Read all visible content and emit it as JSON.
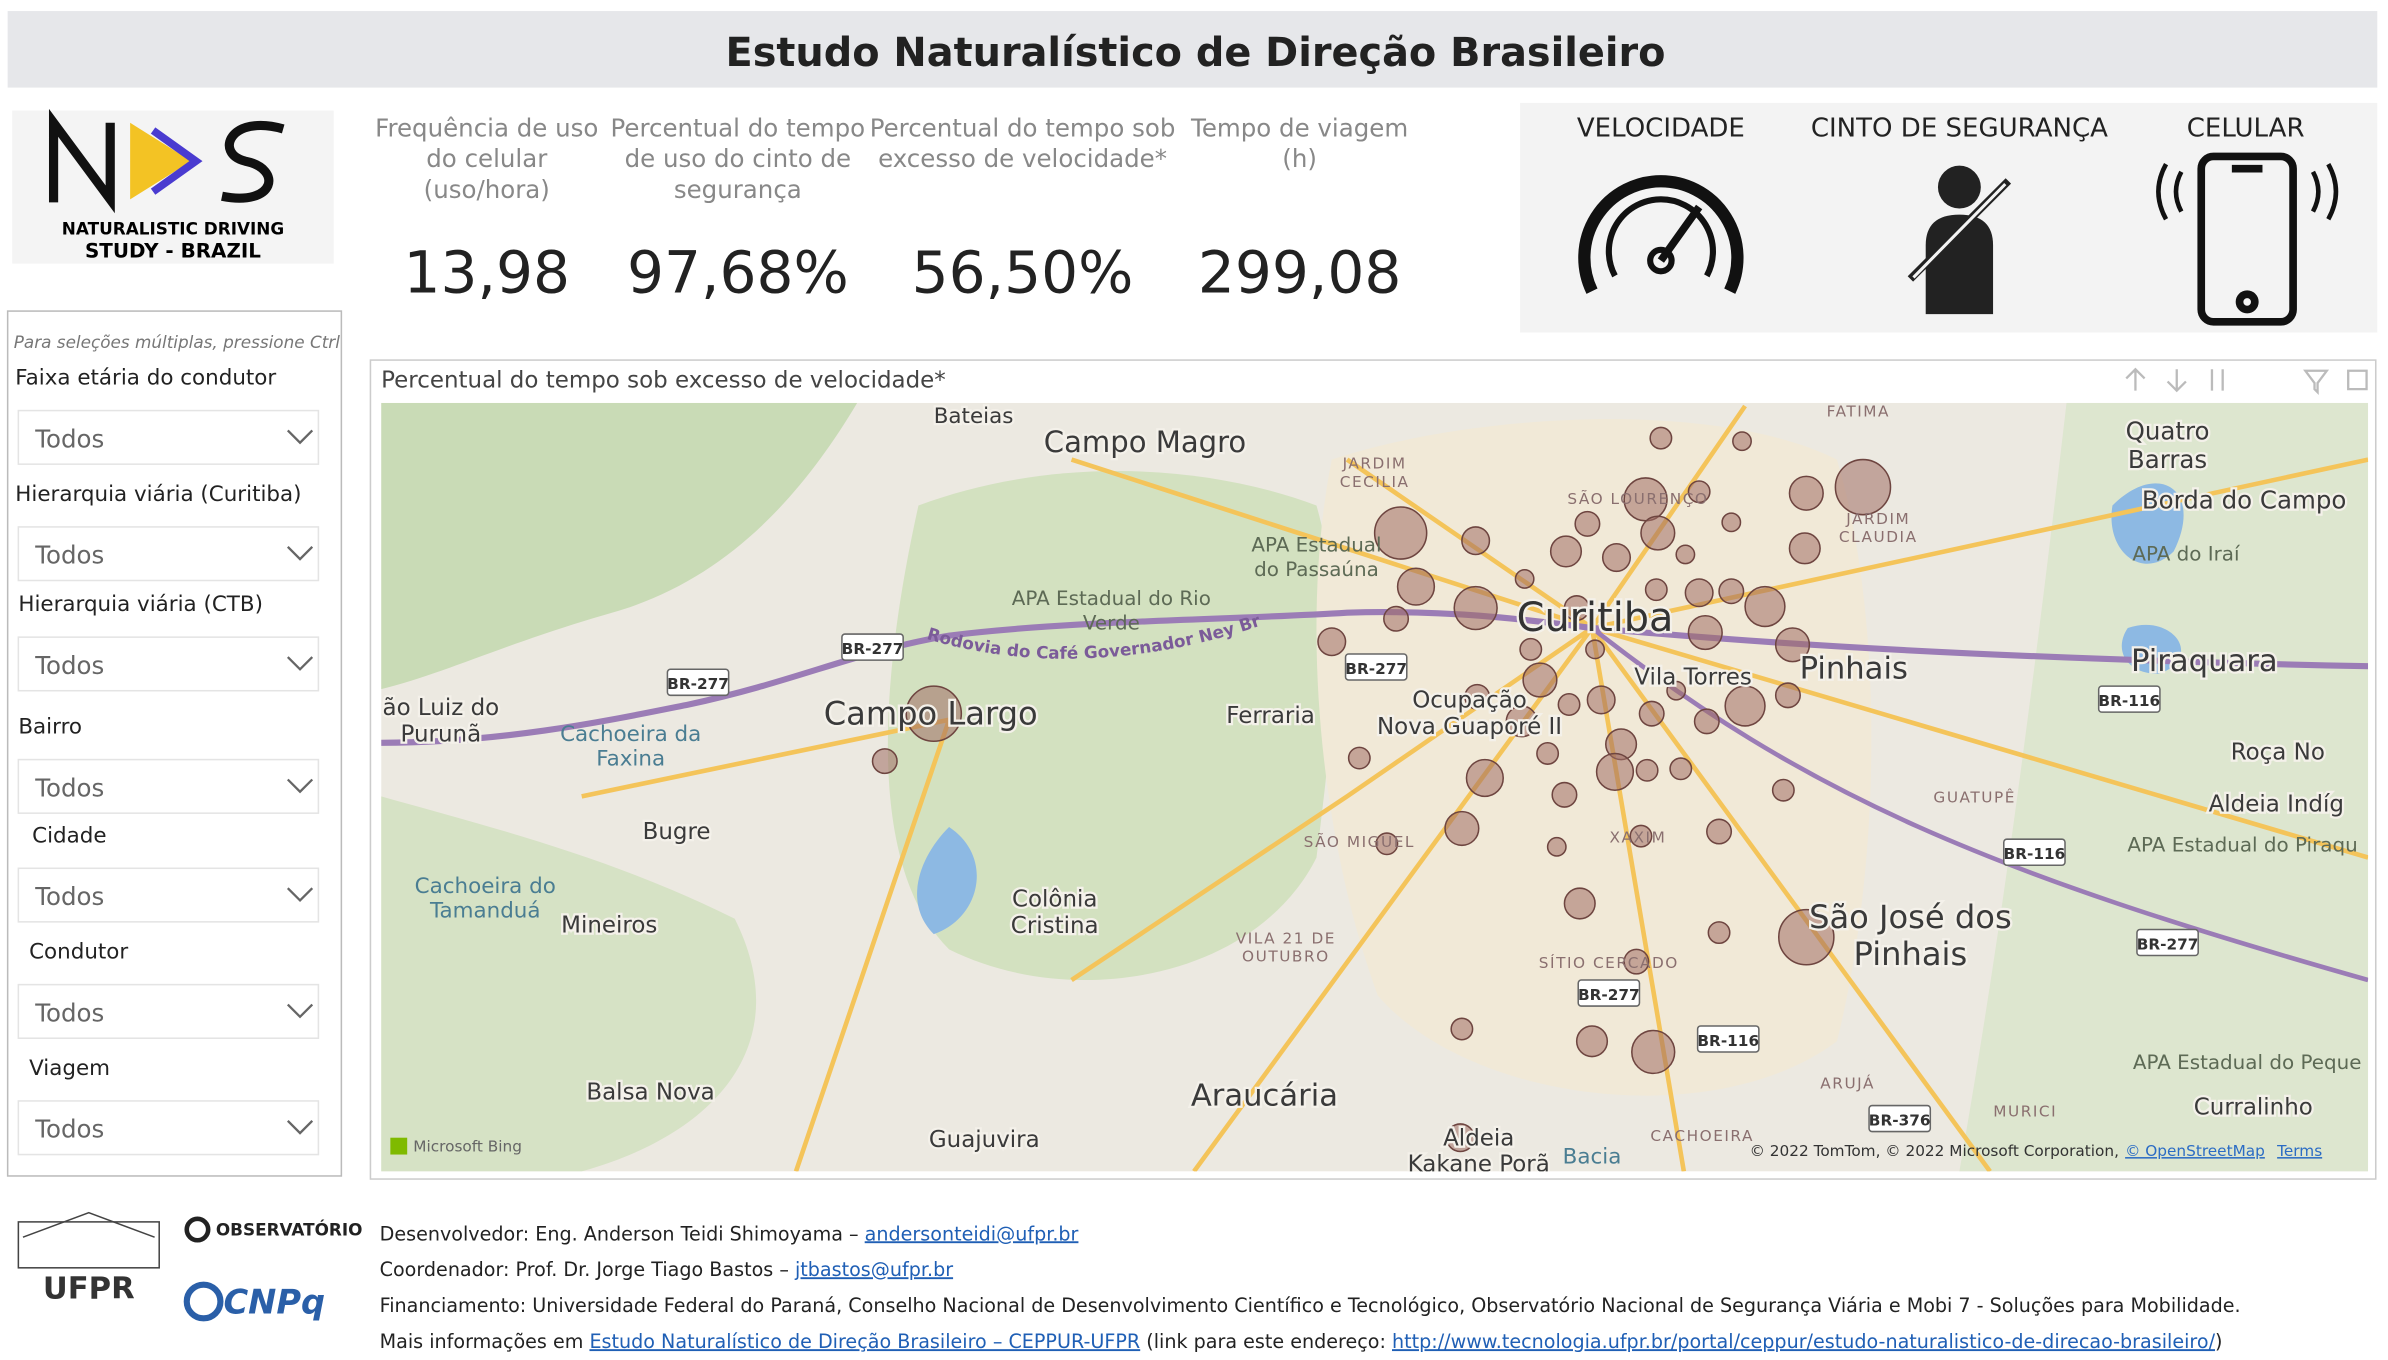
{
  "header": {
    "title": "Estudo Naturalístico de Direção Brasileiro"
  },
  "logo": {
    "line1": "NATURALISTIC DRIVING",
    "line2": "STUDY - BRAZIL"
  },
  "kpis": [
    {
      "label": [
        "Frequência de uso",
        "do celular",
        "(uso/hora)"
      ],
      "value": "13,98"
    },
    {
      "label": [
        "Percentual do tempo",
        "de uso do cinto de",
        "segurança"
      ],
      "value": "97,68%"
    },
    {
      "label": [
        "Percentual do tempo sob",
        "excesso de velocidade*"
      ],
      "value": "56,50%"
    },
    {
      "label": [
        "Tempo de viagem",
        "(h)"
      ],
      "value": "299,08"
    }
  ],
  "icons": [
    "VELOCIDADE",
    "CINTO DE SEGURANÇA",
    "CELULAR"
  ],
  "filters": {
    "hint": "Para seleções múltiplas, pressione Ctrl",
    "items": [
      {
        "label": "Faixa etária do condutor",
        "value": "Todos"
      },
      {
        "label": "Hierarquia viária (Curitiba)",
        "value": "Todos"
      },
      {
        "label": "Hierarquia viária (CTB)",
        "value": "Todos"
      },
      {
        "label": "Bairro",
        "value": "Todos"
      },
      {
        "label": "Cidade",
        "value": "Todos"
      },
      {
        "label": "Condutor",
        "value": "Todos"
      },
      {
        "label": "Viagem",
        "value": "Todos"
      }
    ]
  },
  "map": {
    "title": "Percentual do tempo sob excesso de velocidade*",
    "places": [
      [
        "Bateias"
      ],
      [
        "Campo Magro"
      ],
      [
        "Curitiba"
      ],
      [
        "Pinhais"
      ],
      [
        "Piraquara"
      ],
      [
        "Campo Largo"
      ],
      [
        "Ferraria"
      ],
      [
        "Ocupação",
        "Nova Guaporé II"
      ],
      [
        "Vila Torres"
      ],
      [
        "São José dos",
        "Pinhais"
      ],
      [
        "Araucária"
      ],
      [
        "Colônia",
        "Cristina"
      ],
      [
        "Bugre"
      ],
      [
        "Mineiros"
      ],
      [
        "Balsa Nova"
      ],
      [
        "Guajuvira"
      ],
      [
        "Quatro",
        "Barras"
      ],
      [
        "Borda do Campo"
      ],
      [
        "Roça No"
      ],
      [
        "Aldeia Indíg"
      ],
      [
        "Curralinho"
      ],
      [
        "Aldeia",
        "Kakane Porã"
      ],
      [
        "ão Luiz do",
        "Purunã"
      ]
    ],
    "water_places": [
      [
        "Cachoeira do",
        "Tamanduá"
      ],
      [
        "Cachoeira da",
        "Faxina"
      ],
      [
        "Bacia"
      ]
    ],
    "areas": [
      [
        "APA Estadual do Rio",
        "Verde"
      ],
      [
        "APA Estadual",
        "do Passaúna"
      ],
      [
        "APA do Iraí"
      ],
      [
        "APA Estadual do Piraqu"
      ],
      [
        "APA Estadual do Peque"
      ]
    ],
    "districts": [
      [
        "FATIMA"
      ],
      [
        "JARDIM",
        "CECILIA"
      ],
      [
        "SÃO LOURENÇO"
      ],
      [
        "JARDIM",
        "CLAUDIA"
      ],
      [
        "GUATUPÊ"
      ],
      [
        "SÃO MIGUEL"
      ],
      [
        "XAXIM"
      ],
      [
        "VILA 21 DE",
        "OUTUBRO"
      ],
      [
        "SÍTIO CERCADO"
      ],
      [
        "ARUJÁ"
      ],
      [
        "MURICI"
      ],
      [
        "CACHOEIRA"
      ]
    ],
    "roads": [
      "BR-277",
      "BR-277",
      "BR-277",
      "BR-277",
      "BR-277",
      "BR-116",
      "BR-116",
      "BR-116",
      "BR-376"
    ],
    "highway": "Rodovia do Café Governador Ney Braga",
    "brand": "Microsoft Bing",
    "credits": "© 2022 TomTom, © 2022 Microsoft Corporation,",
    "osm": "© OpenStreetMap",
    "terms": "Terms"
  },
  "partners": {
    "ufpr": "UFPR",
    "observatorio": "OBSERVATÓRIO",
    "cnpq": "CNPq"
  },
  "footer": [
    [
      {
        "text": "Desenvolvedor: Eng. Anderson Teidi Shimoyama – "
      },
      {
        "text": "andersonteidi@ufpr.br",
        "link": true
      }
    ],
    [
      {
        "text": "Coordenador: Prof. Dr. Jorge Tiago Bastos – "
      },
      {
        "text": "jtbastos@ufpr.br",
        "link": true
      }
    ],
    [
      {
        "text": "Financiamento: Universidade Federal do Paraná, Conselho Nacional de Desenvolvimento Científico e Tecnológico, Observatório Nacional de Segurança Viária e Mobi 7 - Soluções para Mobilidade."
      }
    ],
    [
      {
        "text": "Mais informações em "
      },
      {
        "text": "Estudo Naturalístico de Direção Brasileiro – CEPPUR-UFPR",
        "link": true
      },
      {
        "text": " (link para este endereço: "
      },
      {
        "text": "http://www.tecnologia.ufpr.br/portal/ceppur/estudo-naturalistico-de-direcao-brasileiro/",
        "link": true
      },
      {
        "text": ")"
      }
    ]
  ]
}
